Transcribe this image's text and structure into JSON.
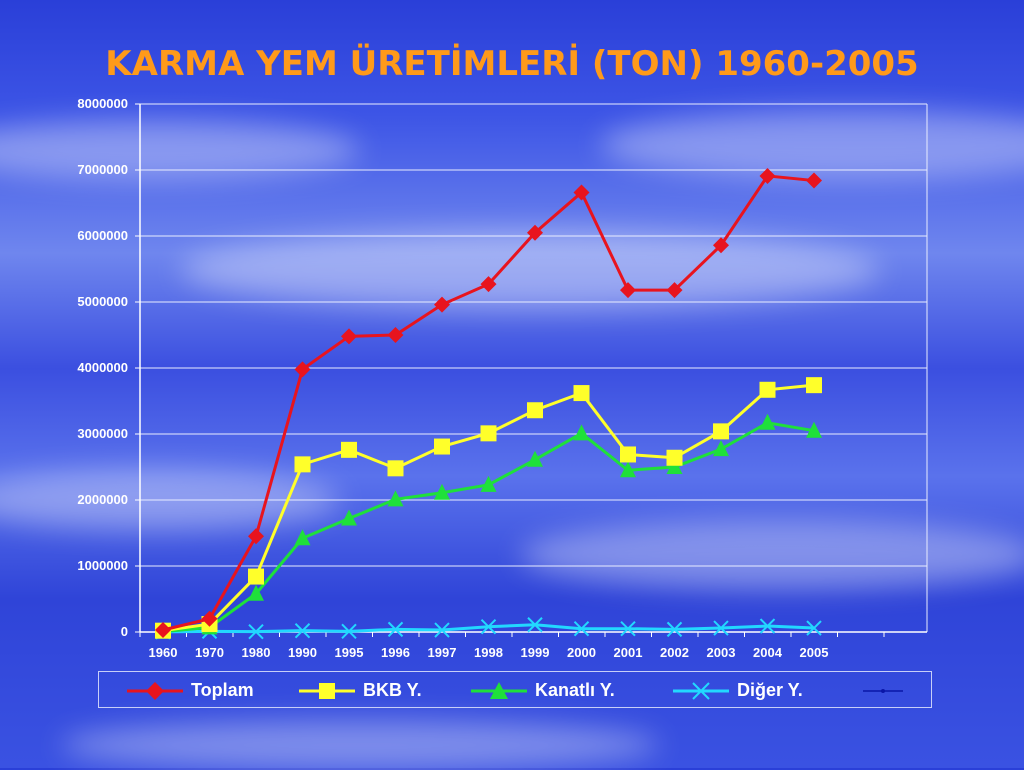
{
  "chart_data": {
    "type": "line",
    "title": "KARMA YEM ÜRETİMLERİ (TON)  1960-2005",
    "categories": [
      "1960",
      "1970",
      "1980",
      "1990",
      "1995",
      "1996",
      "1997",
      "1998",
      "1999",
      "2000",
      "2001",
      "2002",
      "2003",
      "2004",
      "2005"
    ],
    "ylim": [
      0,
      8000000
    ],
    "yticks": [
      "0",
      "1000000",
      "2000000",
      "3000000",
      "4000000",
      "5000000",
      "6000000",
      "7000000",
      "8000000"
    ],
    "grid": true,
    "legend_position": "bottom",
    "series": [
      {
        "name": "Toplam",
        "color": "#e8141e",
        "marker": "diamond",
        "values": [
          30000,
          200000,
          1450000,
          3980000,
          4480000,
          4500000,
          4960000,
          5270000,
          6050000,
          6660000,
          5180000,
          5180000,
          5860000,
          6910000,
          6840000
        ]
      },
      {
        "name": "BKB Y.",
        "color": "#ffff2a",
        "marker": "square",
        "values": [
          20000,
          120000,
          840000,
          2540000,
          2760000,
          2480000,
          2810000,
          3010000,
          3360000,
          3620000,
          2690000,
          2640000,
          3040000,
          3670000,
          3740000
        ]
      },
      {
        "name": "Kanatlı Y.",
        "color": "#1fe03a",
        "marker": "triangle",
        "values": [
          5000,
          70000,
          580000,
          1420000,
          1720000,
          2010000,
          2110000,
          2230000,
          2610000,
          3010000,
          2450000,
          2500000,
          2770000,
          3170000,
          3050000
        ]
      },
      {
        "name": "Diğer Y.",
        "color": "#22d8ff",
        "marker": "x",
        "values": [
          2000,
          10000,
          5000,
          20000,
          10000,
          40000,
          30000,
          80000,
          110000,
          50000,
          50000,
          40000,
          60000,
          90000,
          60000
        ]
      }
    ]
  }
}
